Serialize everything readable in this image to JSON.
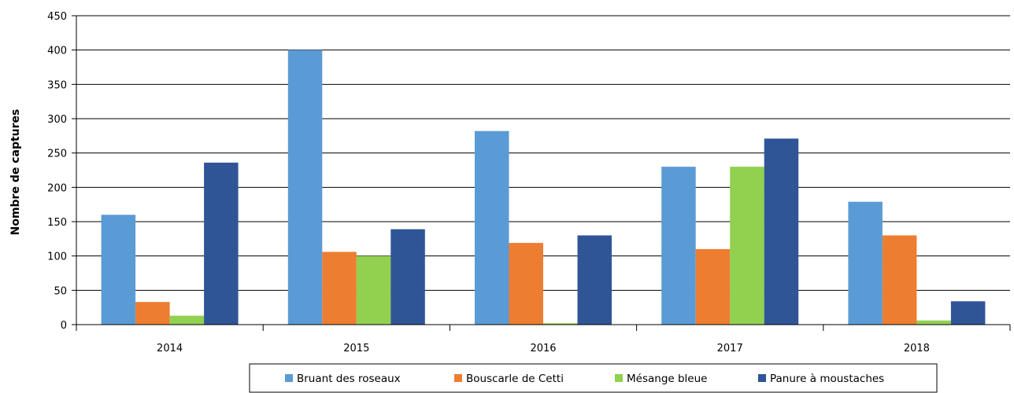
{
  "chart_data": {
    "type": "bar",
    "title": "",
    "xlabel": "",
    "ylabel": "Nombre de captures",
    "categories": [
      "2014",
      "2015",
      "2016",
      "2017",
      "2018"
    ],
    "ylim": [
      0,
      450
    ],
    "yticks": [
      0,
      50,
      100,
      150,
      200,
      250,
      300,
      350,
      400,
      450
    ],
    "grid": true,
    "legend_position": "bottom",
    "series": [
      {
        "name": "Bruant des roseaux",
        "color": "#5B9BD5",
        "values": [
          160,
          400,
          282,
          230,
          179
        ]
      },
      {
        "name": "Bouscarle de Cetti",
        "color": "#ED7D31",
        "values": [
          33,
          106,
          119,
          110,
          130
        ]
      },
      {
        "name": "Mésange bleue",
        "color": "#92D050",
        "values": [
          13,
          100,
          2,
          230,
          6
        ]
      },
      {
        "name": "Panure à moustaches",
        "color": "#2F5597",
        "values": [
          236,
          139,
          130,
          271,
          34
        ]
      }
    ]
  }
}
